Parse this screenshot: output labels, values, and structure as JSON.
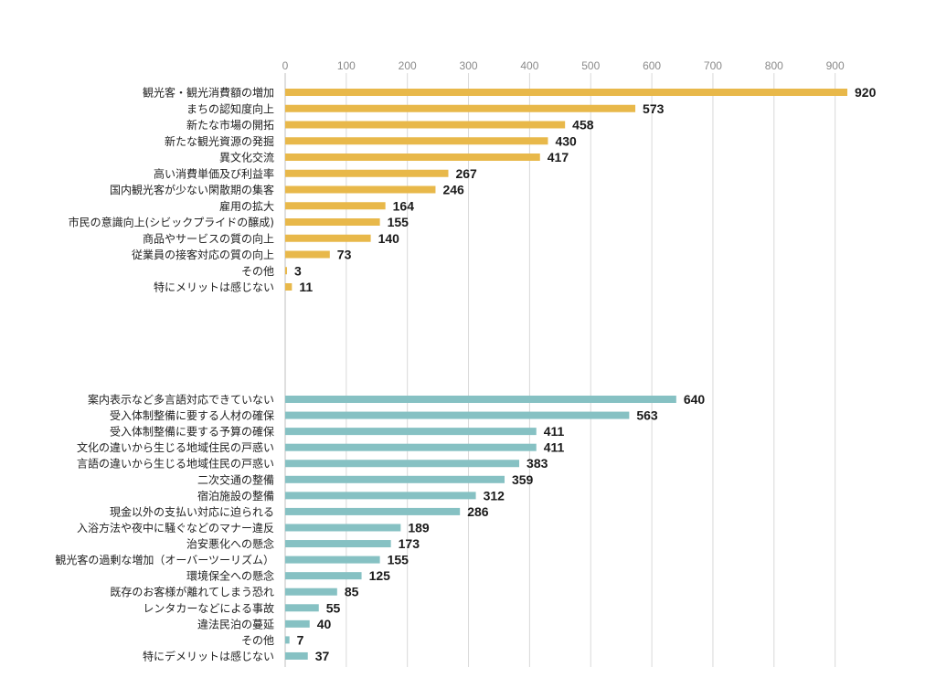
{
  "colors": {
    "merits": "#E8B84A",
    "demerits": "#86C1C3"
  },
  "chart_data": {
    "type": "bar",
    "orientation": "horizontal",
    "xlim": [
      0,
      950
    ],
    "xticks": [
      "0",
      "100",
      "200",
      "300",
      "400",
      "500",
      "600",
      "700",
      "800",
      "900"
    ],
    "grid": true,
    "groups": [
      {
        "color_key": "merits",
        "categories": [
          "観光客・観光消費額の増加",
          "まちの認知度向上",
          "新たな市場の開拓",
          "新たな観光資源の発掘",
          "異文化交流",
          "高い消費単価及び利益率",
          "国内観光客が少ない閑散期の集客",
          "雇用の拡大",
          "市民の意識向上(シビックプライドの醸成)",
          "商品やサービスの質の向上",
          "従業員の接客対応の質の向上",
          "その他",
          "特にメリットは感じない"
        ],
        "values": [
          920,
          573,
          458,
          430,
          417,
          267,
          246,
          164,
          155,
          140,
          73,
          3,
          11
        ],
        "value_labels": [
          "920",
          "573",
          "458",
          "430",
          "417",
          "267",
          "246",
          "164",
          "155",
          "140",
          "73",
          "3",
          "11"
        ]
      },
      {
        "color_key": "demerits",
        "categories": [
          "案内表示など多言語対応できていない",
          "受入体制整備に要する人材の確保",
          "受入体制整備に要する予算の確保",
          "文化の違いから生じる地域住民の戸惑い",
          "言語の違いから生じる地域住民の戸惑い",
          "二次交通の整備",
          "宿泊施設の整備",
          "現金以外の支払い対応に迫られる",
          "入浴方法や夜中に騒ぐなどのマナー違反",
          "治安悪化への懸念",
          "観光客の過剰な増加（オーバーツーリズム）",
          "環境保全への懸念",
          "既存のお客様が離れてしまう恐れ",
          "レンタカーなどによる事故",
          "違法民泊の蔓延",
          "その他",
          "特にデメリットは感じない"
        ],
        "values": [
          640,
          563,
          411,
          411,
          383,
          359,
          312,
          286,
          189,
          173,
          155,
          125,
          85,
          55,
          40,
          7,
          37
        ],
        "value_labels": [
          "640",
          "563",
          "411",
          "411",
          "383",
          "359",
          "312",
          "286",
          "189",
          "173",
          "155",
          "125",
          "85",
          "55",
          "40",
          "7",
          "37"
        ]
      }
    ]
  }
}
